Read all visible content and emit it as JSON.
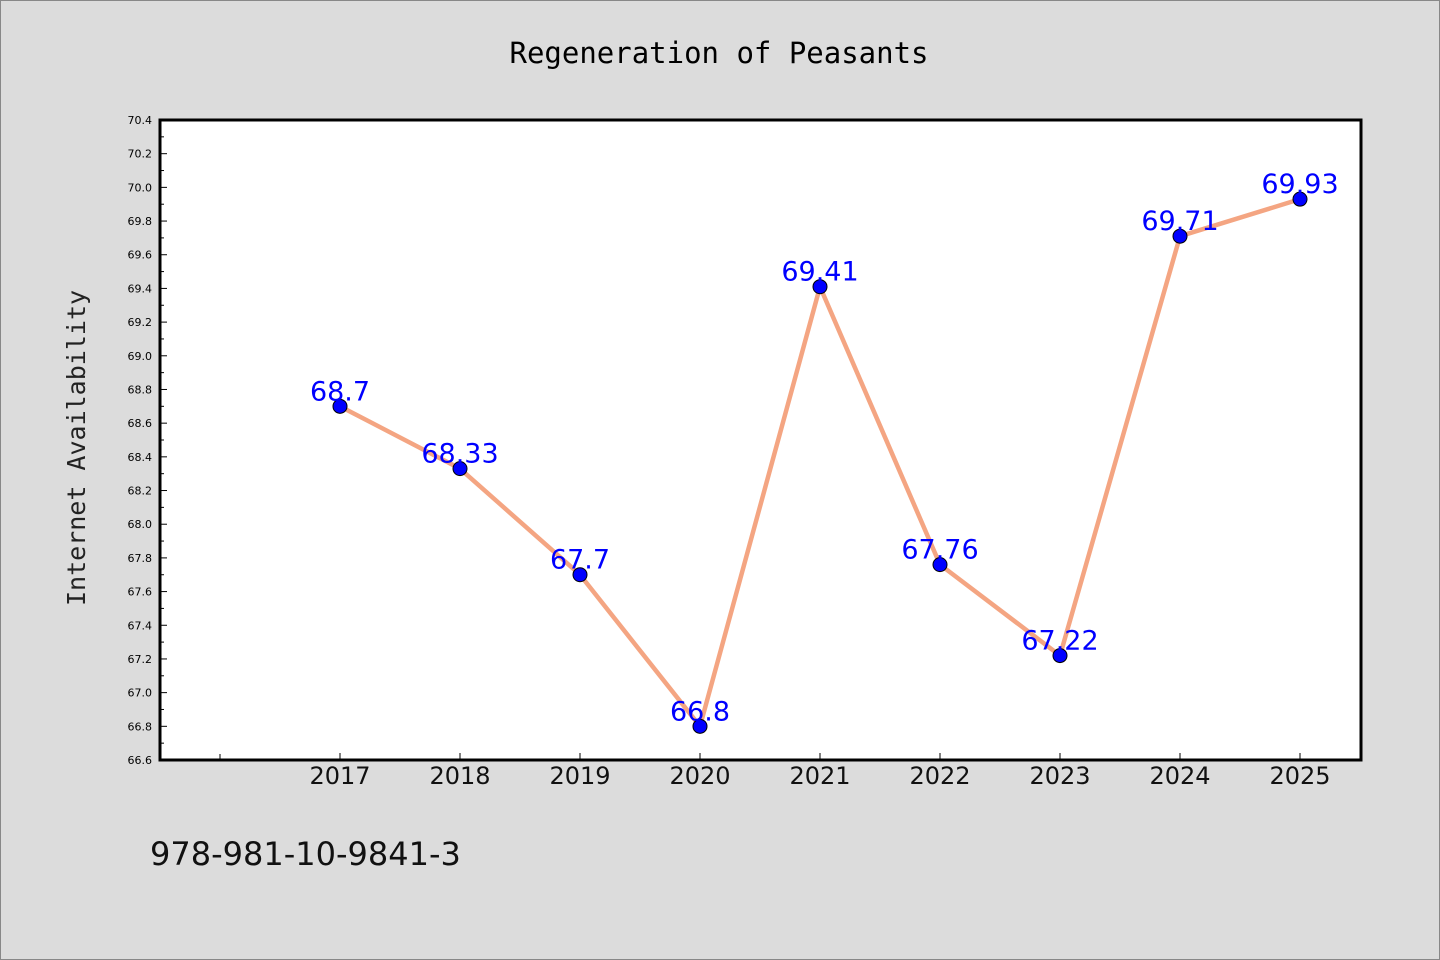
{
  "chart_data": {
    "type": "line",
    "title": "Regeneration of Peasants",
    "xlabel": "",
    "ylabel": "Internet Availability",
    "x": [
      "2017",
      "2018",
      "2019",
      "2020",
      "2021",
      "2022",
      "2023",
      "2024",
      "2025"
    ],
    "series": [
      {
        "values": [
          68.7,
          68.33,
          67.7,
          66.8,
          69.41,
          67.76,
          67.22,
          69.71,
          69.93
        ],
        "data_labels": [
          "68.7",
          "68.33",
          "67.7",
          "66.8",
          "69.41",
          "67.76",
          "67.22",
          "69.71",
          "69.93"
        ]
      }
    ],
    "ylim": [
      66.6,
      70.4
    ],
    "y_ticks": [
      "66.6",
      "66.8",
      "67.0",
      "67.2",
      "67.4",
      "67.6",
      "67.8",
      "68.0",
      "68.2",
      "68.4",
      "68.6",
      "68.8",
      "69.0",
      "69.2",
      "69.4",
      "69.6",
      "69.8",
      "70.0",
      "70.2",
      "70.4"
    ],
    "grid": false,
    "legend": "none",
    "colors": {
      "line": "#f4a582",
      "marker": "#0000ff",
      "label": "#0000ff",
      "background": "#dcdcdc",
      "plot_area": "#ffffff"
    }
  },
  "footer": {
    "code": "978-981-10-9841-3"
  }
}
